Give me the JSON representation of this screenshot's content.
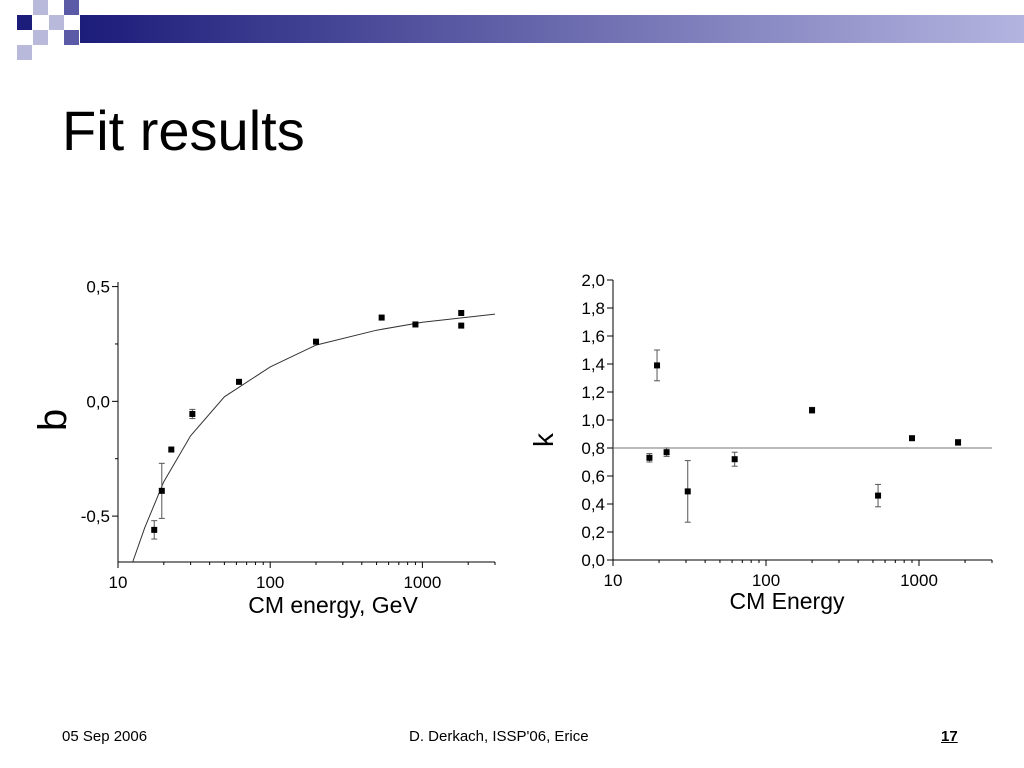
{
  "title": "Fit results",
  "footer": {
    "date": "05 Sep 2006",
    "author": "D. Derkach, ISSP'06, Erice",
    "page": "17"
  },
  "colors": {
    "header_dark": "#1c1c7a",
    "header_light": "#b4b4e0",
    "square_mid": "#5a5aa6",
    "square_light": "#b9b9dc"
  },
  "chart_data": [
    {
      "type": "scatter",
      "xlabel": "CM energy, GeV",
      "ylabel": "b",
      "xscale": "log",
      "xlim": [
        10,
        3000
      ],
      "ylim": [
        -0.7,
        0.52
      ],
      "xticks": [
        10,
        100,
        1000
      ],
      "xtick_labels": [
        "10",
        "100",
        "1000"
      ],
      "yticks": [
        -0.5,
        0.0,
        0.5
      ],
      "ytick_labels": [
        "-0,5",
        "0,0",
        "0,5"
      ],
      "points": [
        {
          "x": 17.3,
          "y": -0.56,
          "err": 0.04
        },
        {
          "x": 19.4,
          "y": -0.39,
          "err": 0.12
        },
        {
          "x": 22.4,
          "y": -0.21
        },
        {
          "x": 30.8,
          "y": -0.055,
          "err": 0.02
        },
        {
          "x": 62.4,
          "y": 0.085
        },
        {
          "x": 200,
          "y": 0.26
        },
        {
          "x": 540,
          "y": 0.365
        },
        {
          "x": 900,
          "y": 0.335
        },
        {
          "x": 1800,
          "y": 0.385
        },
        {
          "x": 1800,
          "y": 0.33
        }
      ],
      "fit_curve": [
        {
          "x": 12.5,
          "y": -0.7
        },
        {
          "x": 15,
          "y": -0.55
        },
        {
          "x": 20,
          "y": -0.35
        },
        {
          "x": 30,
          "y": -0.15
        },
        {
          "x": 50,
          "y": 0.02
        },
        {
          "x": 100,
          "y": 0.15
        },
        {
          "x": 200,
          "y": 0.245
        },
        {
          "x": 500,
          "y": 0.31
        },
        {
          "x": 1000,
          "y": 0.345
        },
        {
          "x": 3000,
          "y": 0.38
        }
      ]
    },
    {
      "type": "scatter",
      "xlabel": "CM Energy",
      "ylabel": "k",
      "xscale": "log",
      "xlim": [
        10,
        3000
      ],
      "ylim": [
        0.0,
        2.0
      ],
      "xticks": [
        10,
        100,
        1000
      ],
      "xtick_labels": [
        "10",
        "100",
        "1000"
      ],
      "yticks": [
        0.0,
        0.2,
        0.4,
        0.6,
        0.8,
        1.0,
        1.2,
        1.4,
        1.6,
        1.8,
        2.0
      ],
      "ytick_labels": [
        "0,0",
        "0,2",
        "0,4",
        "0,6",
        "0,8",
        "1,0",
        "1,2",
        "1,4",
        "1,6",
        "1,8",
        "2,0"
      ],
      "points": [
        {
          "x": 17.3,
          "y": 0.73,
          "err": 0.03
        },
        {
          "x": 19.4,
          "y": 1.39,
          "err": 0.11
        },
        {
          "x": 22.4,
          "y": 0.77,
          "err": 0.03
        },
        {
          "x": 30.8,
          "y": 0.49,
          "err": 0.22
        },
        {
          "x": 62.4,
          "y": 0.72,
          "err": 0.05
        },
        {
          "x": 200,
          "y": 1.07,
          "err": 0.02
        },
        {
          "x": 540,
          "y": 0.46,
          "err": 0.08
        },
        {
          "x": 900,
          "y": 0.87
        },
        {
          "x": 1800,
          "y": 0.84,
          "err": 0.02
        }
      ],
      "reference_line": 0.8
    }
  ]
}
